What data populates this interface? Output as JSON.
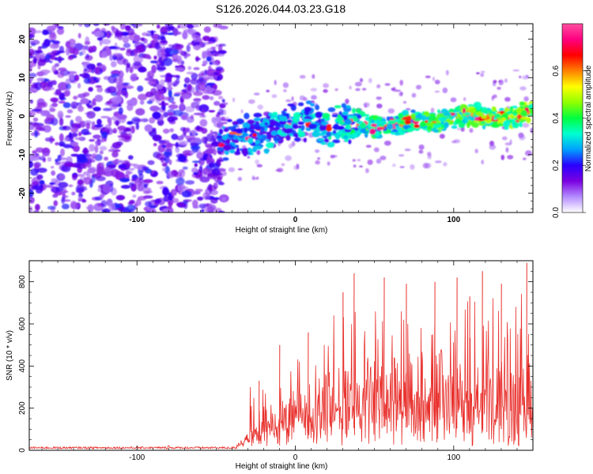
{
  "title": "S126.2026.044.03.23.G18",
  "chart_data": [
    {
      "type": "heatmap",
      "title": "S126.2026.044.03.23.G18",
      "xlabel": "Height of straight line (km)",
      "ylabel": "Frequency (Hz)",
      "xlim": [
        -168,
        150
      ],
      "ylim": [
        -25,
        24
      ],
      "x_ticks": [
        -100,
        0,
        100
      ],
      "x_tick_labels": [
        "-100",
        "0",
        "100"
      ],
      "y_ticks": [
        -20,
        -10,
        0,
        10,
        20
      ],
      "y_tick_labels": [
        "-20",
        "-10",
        "0",
        "10",
        "20"
      ],
      "noise_region_x": [
        -168,
        -45
      ],
      "signal_ridge": {
        "x": [
          -48,
          -40,
          -30,
          -20,
          -10,
          0,
          10,
          20,
          30,
          40,
          50,
          60,
          70,
          80,
          90,
          100,
          110,
          120,
          130,
          140,
          148
        ],
        "frequency": [
          -7,
          -5,
          -5,
          -4,
          -3,
          -2,
          -1,
          -3,
          -2,
          -2,
          -3,
          -2,
          -1.5,
          -1.5,
          -1,
          0,
          0.5,
          0,
          0,
          0,
          1
        ]
      },
      "colorbar": {
        "label": "Normalized spectral amplitude",
        "range": [
          0,
          0.8
        ],
        "ticks": [
          0,
          0.2,
          0.4,
          0.6
        ],
        "tick_labels": [
          "0.0",
          "0.2",
          "0.4",
          "0.6"
        ],
        "colors": [
          "#ffffff",
          "#b48cff",
          "#7a00e0",
          "#2a00ff",
          "#00a0ff",
          "#00ffd0",
          "#00ff40",
          "#90ff00",
          "#ffff00",
          "#ff8000",
          "#ff0000",
          "#ff0080",
          "#ff4fa0"
        ]
      }
    },
    {
      "type": "line",
      "xlabel": "Height of straight line (km)",
      "ylabel": "SNR (10 * v/v)",
      "xlim": [
        -168,
        150
      ],
      "ylim": [
        0,
        900
      ],
      "x_ticks": [
        -100,
        0,
        100
      ],
      "x_tick_labels": [
        "-100",
        "0",
        "100"
      ],
      "y_ticks": [
        0,
        200,
        400,
        600,
        800
      ],
      "y_tick_labels": [
        "0",
        "200",
        "400",
        "600",
        "800"
      ],
      "line_color": "#e8302c",
      "noise_floor": {
        "x_range": [
          -168,
          -37
        ],
        "level": 12
      },
      "envelope": {
        "x": [
          -37,
          -30,
          -20,
          -10,
          0,
          10,
          20,
          30,
          40,
          50,
          60,
          70,
          80,
          90,
          100,
          110,
          120,
          130,
          140,
          145,
          150
        ],
        "base": [
          20,
          50,
          90,
          130,
          170,
          200,
          230,
          250,
          270,
          280,
          280,
          270,
          270,
          270,
          260,
          260,
          250,
          250,
          250,
          250,
          250
        ],
        "peak": [
          150,
          330,
          420,
          500,
          500,
          560,
          650,
          840,
          720,
          790,
          720,
          760,
          800,
          750,
          800,
          820,
          850,
          780,
          820,
          890,
          560
        ]
      },
      "peaks": [
        {
          "x": -23,
          "y": 330
        },
        {
          "x": -10,
          "y": 500
        },
        {
          "x": 8,
          "y": 560
        },
        {
          "x": 30,
          "y": 750
        },
        {
          "x": 37,
          "y": 840
        },
        {
          "x": 56,
          "y": 820
        },
        {
          "x": 70,
          "y": 790
        },
        {
          "x": 88,
          "y": 800
        },
        {
          "x": 102,
          "y": 820
        },
        {
          "x": 110,
          "y": 730
        },
        {
          "x": 118,
          "y": 850
        },
        {
          "x": 130,
          "y": 790
        },
        {
          "x": 146,
          "y": 890
        }
      ]
    }
  ]
}
